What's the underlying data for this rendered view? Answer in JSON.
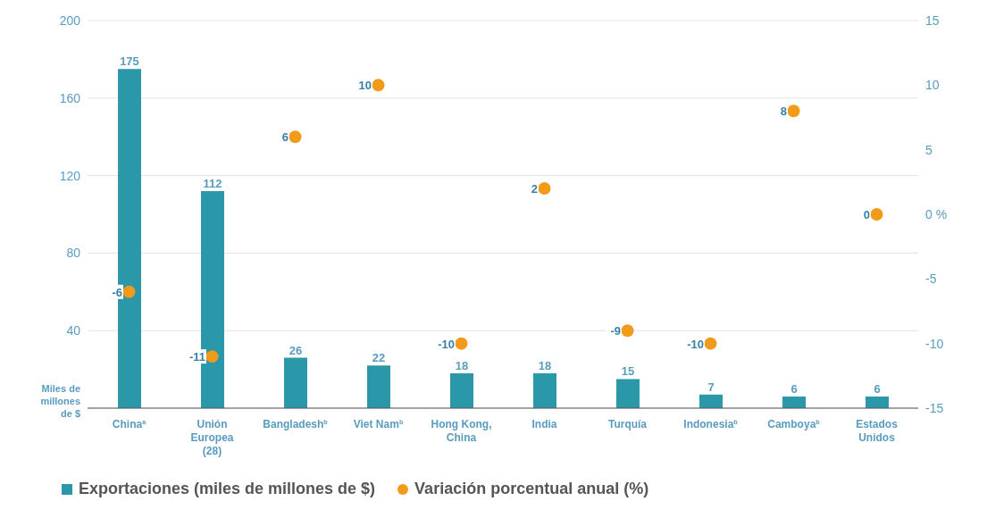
{
  "chart_data": {
    "type": "bar",
    "ylabel": "Miles de millones de $",
    "categories": [
      "China$^{a}$",
      "Unión Europea (28)",
      "Bangladesh$^{b}$",
      "Viet Nam$^{b}$",
      "Hong Kong, China",
      "India",
      "Turquía",
      "Indonesia$^{b}$",
      "Camboya$^{b}$",
      "Estados Unidos"
    ],
    "series": [
      {
        "name": "Exportaciones (miles de millones de $)",
        "color": "#2a98a9",
        "values": [
          175,
          112,
          26,
          22,
          18,
          18,
          15,
          7,
          6,
          6
        ]
      },
      {
        "name": "Variación porcentual anual (%)",
        "type": "scatter",
        "axis": "y2",
        "color": "#f29a1a",
        "values": [
          -6,
          -11,
          6,
          10,
          -10,
          2,
          -9,
          -10,
          8,
          0
        ]
      }
    ],
    "ylim": [
      0,
      200
    ],
    "yticks": [
      {
        "value": 0,
        "label": null
      },
      40,
      80,
      120,
      160,
      200
    ],
    "y2lim": [
      -15,
      15
    ],
    "y2ticks": [
      -15,
      -10,
      -5,
      {
        "value": 0,
        "label": "0 %"
      },
      5,
      10,
      15
    ],
    "data_labels": true,
    "grid": "y",
    "legend": "bottom left",
    "marker": "circle"
  }
}
